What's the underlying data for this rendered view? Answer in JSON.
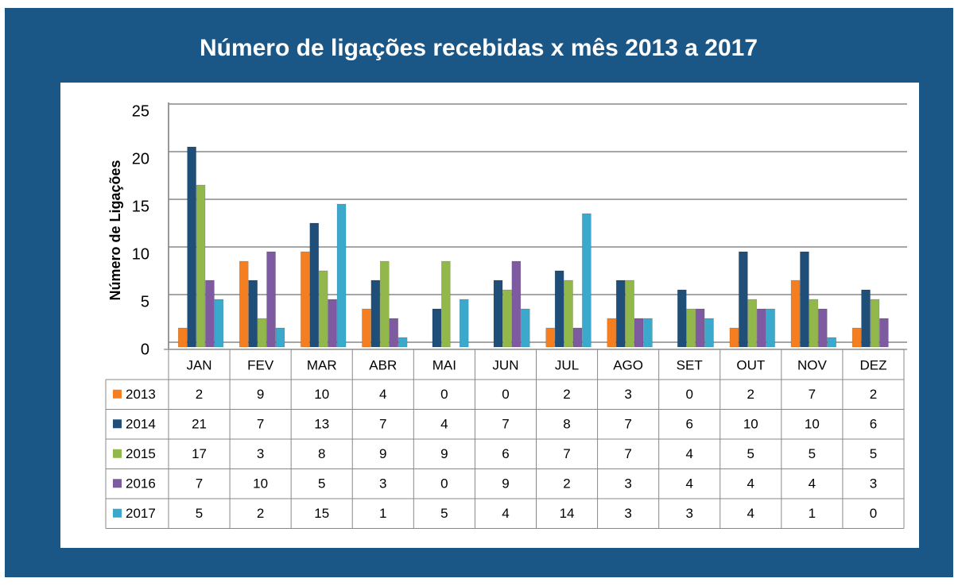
{
  "chart_data": {
    "type": "bar",
    "title": "Número de ligações recebidas x mês  2013 a 2017",
    "y_label": "Número de Ligações",
    "categories": [
      "JAN",
      "FEV",
      "MAR",
      "ABR",
      "MAI",
      "JUN",
      "JUL",
      "AGO",
      "SET",
      "OUT",
      "NOV",
      "DEZ"
    ],
    "series": [
      {
        "name": "2013",
        "color": "#f57f20",
        "values": [
          2,
          9,
          10,
          4,
          0,
          0,
          2,
          3,
          0,
          2,
          7,
          2
        ]
      },
      {
        "name": "2014",
        "color": "#1f4e79",
        "values": [
          21,
          7,
          13,
          7,
          4,
          7,
          8,
          7,
          6,
          10,
          10,
          6
        ]
      },
      {
        "name": "2015",
        "color": "#92b74a",
        "values": [
          17,
          3,
          8,
          9,
          9,
          6,
          7,
          7,
          4,
          5,
          5,
          5
        ]
      },
      {
        "name": "2016",
        "color": "#7e5ba1",
        "values": [
          7,
          10,
          5,
          3,
          0,
          9,
          2,
          3,
          4,
          4,
          4,
          3
        ]
      },
      {
        "name": "2017",
        "color": "#3ba9cc",
        "values": [
          5,
          2,
          15,
          1,
          5,
          4,
          14,
          3,
          3,
          4,
          1,
          0
        ]
      }
    ],
    "ylim": [
      0,
      25
    ],
    "yticks": [
      0,
      5,
      10,
      15,
      20,
      25
    ],
    "grid": true
  }
}
